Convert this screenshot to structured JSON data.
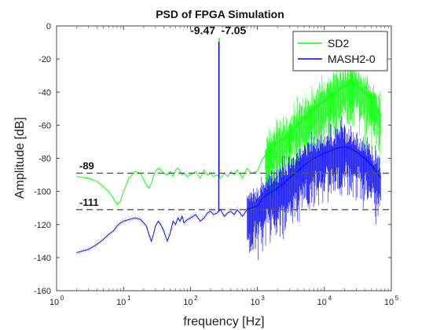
{
  "chart_data": {
    "type": "line",
    "title": "PSD of FPGA Simulation",
    "xlabel": "frequency [Hz]",
    "ylabel": "Amplitude [dB]",
    "x_scale": "log",
    "xlim": [
      1,
      100000
    ],
    "ylim": [
      -160,
      0
    ],
    "grid": false,
    "legend_position": "top-right",
    "x_ticks": [
      {
        "value": 1,
        "base": "10",
        "exp": "0"
      },
      {
        "value": 10,
        "base": "10",
        "exp": "1"
      },
      {
        "value": 100,
        "base": "10",
        "exp": "2"
      },
      {
        "value": 1000,
        "base": "10",
        "exp": "3"
      },
      {
        "value": 10000,
        "base": "10",
        "exp": "4"
      },
      {
        "value": 100000,
        "base": "10",
        "exp": "5"
      }
    ],
    "y_ticks": [
      0,
      -20,
      -40,
      -60,
      -80,
      -100,
      -120,
      -140,
      -160
    ],
    "y_tick_labels": [
      "0",
      "-20",
      "-40",
      "-60",
      "-80",
      "-100",
      "-120",
      "-140",
      "-160"
    ],
    "series": [
      {
        "name": "SD2",
        "color": "#00ff00",
        "x": [
          2,
          3,
          4,
          5,
          6,
          7,
          8,
          9,
          10,
          12,
          15,
          18,
          20,
          22,
          24,
          26,
          28,
          30,
          33,
          36,
          40,
          45,
          50,
          55,
          60,
          65,
          70,
          75,
          80,
          90,
          100,
          120,
          140,
          160,
          180,
          200,
          220,
          250,
          280,
          320,
          360,
          400,
          450,
          500,
          600,
          700,
          800,
          1000,
          1200,
          1500,
          1700,
          2000,
          2500,
          3000,
          4000,
          5000,
          7000,
          10000,
          15000,
          20000,
          25000,
          30000,
          40000,
          50000,
          60000,
          70000
        ],
        "y": [
          -91,
          -92,
          -94,
          -97,
          -100,
          -104,
          -108,
          -106,
          -100,
          -92,
          -88,
          -89,
          -93,
          -96,
          -98,
          -95,
          -91,
          -88,
          -86,
          -87,
          -89,
          -90,
          -88,
          -91,
          -87,
          -86,
          -88,
          -90,
          -89,
          -91,
          -90,
          -88,
          -92,
          -87,
          -90,
          -89,
          -91,
          -90,
          -92,
          -89,
          -91,
          -88,
          -90,
          -87,
          -92,
          -86,
          -89,
          -88,
          -80,
          -76,
          -74,
          -70,
          -68,
          -65,
          -60,
          -56,
          -50,
          -45,
          -40,
          -36,
          -34,
          -36,
          -40,
          -45,
          -50,
          -55
        ],
        "spread": 15,
        "spread_from": 1300
      },
      {
        "name": "MASH2-0",
        "color": "#0000ff",
        "x": [
          2,
          3,
          4,
          5,
          6,
          7,
          8,
          9,
          10,
          12,
          15,
          18,
          20,
          22,
          24,
          26,
          28,
          30,
          33,
          36,
          40,
          45,
          50,
          55,
          60,
          65,
          70,
          75,
          80,
          90,
          100,
          120,
          140,
          160,
          180,
          200,
          220,
          250,
          280,
          320,
          360,
          400,
          450,
          500,
          600,
          700,
          800,
          1000,
          1200,
          1500,
          1700,
          2000,
          2500,
          3000,
          4000,
          5000,
          7000,
          10000,
          15000,
          20000,
          25000,
          30000,
          40000,
          50000,
          60000,
          70000
        ],
        "y": [
          -137,
          -135,
          -132,
          -129,
          -126,
          -124,
          -121,
          -119,
          -118,
          -117,
          -116,
          -117,
          -119,
          -121,
          -126,
          -130,
          -126,
          -121,
          -118,
          -120,
          -124,
          -130,
          -125,
          -118,
          -120,
          -116,
          -118,
          -115,
          -119,
          -117,
          -116,
          -114,
          -118,
          -116,
          -113,
          -112,
          -114,
          -113,
          -111,
          -115,
          -113,
          -112,
          -114,
          -111,
          -115,
          -111,
          -110,
          -109,
          -104,
          -101,
          -100,
          -98,
          -95,
          -92,
          -88,
          -84,
          -80,
          -77,
          -74,
          -73,
          -74,
          -76,
          -80,
          -84,
          -88,
          -92
        ],
        "spread": 16,
        "spread_from": 700
      }
    ],
    "spikes": [
      {
        "series": "SD2",
        "x": 270,
        "y": -7.05
      },
      {
        "series": "MASH2-0",
        "x": 265,
        "y": -9.47
      }
    ],
    "reference_lines": [
      {
        "y": -89,
        "label": "-89",
        "color": "#555555"
      },
      {
        "y": -111,
        "label": "-111",
        "color": "#555555"
      }
    ],
    "annotations": [
      {
        "label": "-9.47",
        "x": 170,
        "y": -5
      },
      {
        "label": "-7.05",
        "x": 320,
        "y": -5
      }
    ]
  }
}
